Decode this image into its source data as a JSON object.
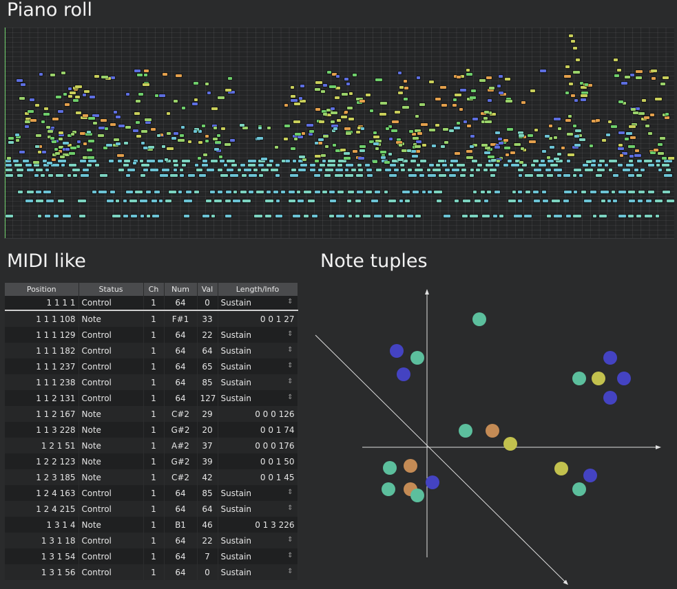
{
  "titles": {
    "piano_roll": "Piano roll",
    "midi": "MIDI like",
    "tuples": "Note tuples"
  },
  "colors": {
    "background": "#2a2b2c",
    "grid": "#242526",
    "playhead": "#6fcf6b",
    "note_palette": [
      "#6cc3d5",
      "#7cd3c0",
      "#6fcf6b",
      "#9ad26a",
      "#c9cf5a",
      "#e4a04c",
      "#5d6ee0",
      "#4fa8e0"
    ],
    "tuple_dots": {
      "teal": "#5cbf9d",
      "blue": "#4443c2",
      "orange": "#c48b55",
      "yellow": "#c2c14e"
    }
  },
  "midi": {
    "columns": [
      "Position",
      "Status",
      "Ch",
      "Num",
      "Val",
      "Length/Info"
    ],
    "rows": [
      [
        "1 1 1    1",
        "Control",
        "1",
        "64",
        "0",
        "Sustain"
      ],
      [
        "1 1 1 108",
        "Note",
        "1",
        "F#1",
        "33",
        "0 0 1   27"
      ],
      [
        "1 1 1 129",
        "Control",
        "1",
        "64",
        "22",
        "Sustain"
      ],
      [
        "1 1 1 182",
        "Control",
        "1",
        "64",
        "64",
        "Sustain"
      ],
      [
        "1 1 1 237",
        "Control",
        "1",
        "64",
        "65",
        "Sustain"
      ],
      [
        "1 1 1 238",
        "Control",
        "1",
        "64",
        "85",
        "Sustain"
      ],
      [
        "1 1 2 131",
        "Control",
        "1",
        "64",
        "127",
        "Sustain"
      ],
      [
        "1 1 2 167",
        "Note",
        "1",
        "C#2",
        "29",
        "0 0 0 126"
      ],
      [
        "1 1 3 228",
        "Note",
        "1",
        "G#2",
        "20",
        "0 0 1   74"
      ],
      [
        "1 2 1   51",
        "Note",
        "1",
        "A#2",
        "37",
        "0 0 0 176"
      ],
      [
        "1 2 2 123",
        "Note",
        "1",
        "G#2",
        "39",
        "0 0 1   50"
      ],
      [
        "1 2 3 185",
        "Note",
        "1",
        "C#2",
        "42",
        "0 0 1   45"
      ],
      [
        "1 2 4 163",
        "Control",
        "1",
        "64",
        "85",
        "Sustain"
      ],
      [
        "1 2 4 215",
        "Control",
        "1",
        "64",
        "64",
        "Sustain"
      ],
      [
        "1 3 1    4",
        "Note",
        "1",
        "B1",
        "46",
        "0 1 3 226"
      ],
      [
        "1 3 1   18",
        "Control",
        "1",
        "64",
        "22",
        "Sustain"
      ],
      [
        "1 3 1   54",
        "Control",
        "1",
        "64",
        "7",
        "Sustain"
      ],
      [
        "1 3 1   56",
        "Control",
        "1",
        "64",
        "0",
        "Sustain"
      ]
    ]
  },
  "chart_data": {
    "type": "scatter",
    "title": "",
    "xlabel": "",
    "ylabel": "",
    "xlim": [
      -160,
      340
    ],
    "ylim": [
      -165,
      230
    ],
    "grid": false,
    "diagonal_line": {
      "from": [
        -162,
        163
      ],
      "to": [
        205,
        -200
      ]
    },
    "points": [
      {
        "x": 76,
        "y": 186,
        "color": "teal"
      },
      {
        "x": -44,
        "y": 140,
        "color": "blue"
      },
      {
        "x": -14,
        "y": 130,
        "color": "teal"
      },
      {
        "x": -34,
        "y": 106,
        "color": "blue"
      },
      {
        "x": 266,
        "y": 130,
        "color": "blue"
      },
      {
        "x": 221,
        "y": 100,
        "color": "teal"
      },
      {
        "x": 249,
        "y": 100,
        "color": "yellow"
      },
      {
        "x": 286,
        "y": 100,
        "color": "blue"
      },
      {
        "x": 266,
        "y": 72,
        "color": "blue"
      },
      {
        "x": 56,
        "y": 24,
        "color": "teal"
      },
      {
        "x": 95,
        "y": 24,
        "color": "orange"
      },
      {
        "x": 121,
        "y": 5,
        "color": "yellow"
      },
      {
        "x": -54,
        "y": -30,
        "color": "teal"
      },
      {
        "x": -24,
        "y": -27,
        "color": "orange"
      },
      {
        "x": 195,
        "y": -31,
        "color": "yellow"
      },
      {
        "x": 237,
        "y": -41,
        "color": "blue"
      },
      {
        "x": 8,
        "y": -51,
        "color": "blue"
      },
      {
        "x": -56,
        "y": -61,
        "color": "teal"
      },
      {
        "x": -24,
        "y": -61,
        "color": "orange"
      },
      {
        "x": -14,
        "y": -70,
        "color": "teal"
      },
      {
        "x": 221,
        "y": -61,
        "color": "teal"
      }
    ]
  }
}
